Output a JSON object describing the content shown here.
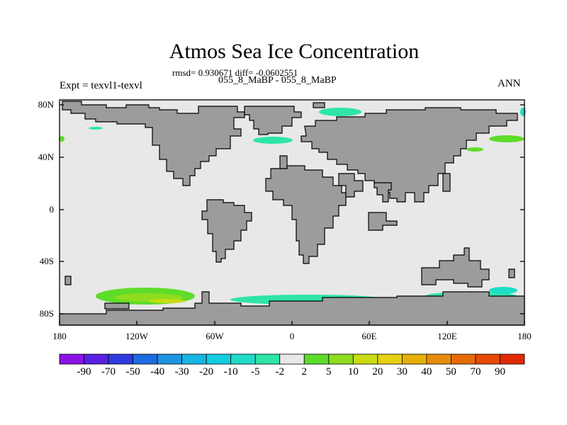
{
  "header": {
    "title": "Atmos Sea Ice Concentration",
    "stats": "rmsd= 0.930671 diff= -0.0602551",
    "cases": "055_8_MaBP - 055_8_MaBP",
    "experiment": "Expt = texvl1-texvl",
    "season": "ANN"
  },
  "axes": {
    "lat_labels": [
      "80N",
      "40N",
      "0",
      "40S",
      "80S"
    ],
    "lon_labels": [
      "180",
      "120W",
      "60W",
      "0",
      "60E",
      "120E",
      "180"
    ]
  },
  "colorbar": {
    "labels": [
      "-90",
      "-70",
      "-50",
      "-40",
      "-30",
      "-20",
      "-10",
      "-5",
      "-2",
      "2",
      "5",
      "10",
      "20",
      "30",
      "40",
      "50",
      "70",
      "90"
    ],
    "colors": [
      "#8a14e6",
      "#5a1fe0",
      "#2d3ce0",
      "#1f6be0",
      "#1e95e0",
      "#18b6e4",
      "#12cde0",
      "#1edcc8",
      "#2ee4a8",
      "#e8e8e8",
      "#5edc2a",
      "#8edc1e",
      "#c8dc10",
      "#e6d010",
      "#e6b00c",
      "#e68c0c",
      "#e66a08",
      "#e64a06",
      "#e02a04"
    ]
  },
  "colors": {
    "ocean": "#e8e8e8",
    "land": "#9c9c9c",
    "coast": "#000000"
  }
}
